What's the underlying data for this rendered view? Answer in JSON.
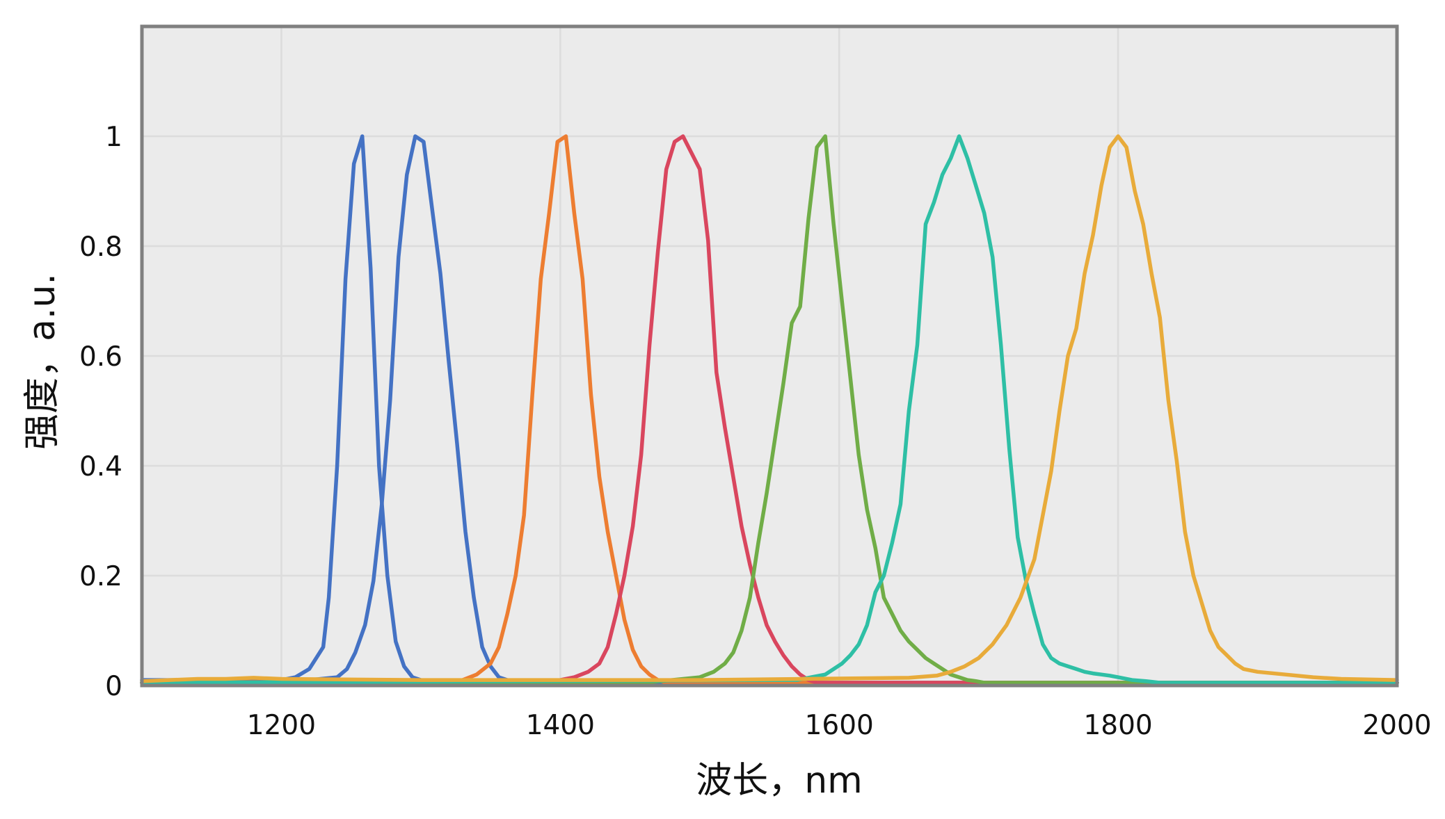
{
  "chart_data": {
    "type": "line",
    "title": "",
    "xlabel": "波长，nm",
    "ylabel": "强度，a.u.",
    "xlim": [
      1100,
      2000
    ],
    "ylim": [
      0,
      1.2
    ],
    "xticks": [
      1200,
      1400,
      1600,
      1800,
      2000
    ],
    "yticks": [
      0,
      0.2,
      0.4,
      0.6,
      0.8,
      1
    ],
    "ytick_labels": [
      "0",
      "0.2",
      "0.4",
      "0.6",
      "0.8",
      "1"
    ],
    "grid": true,
    "legend": "none",
    "background": "#ebebeb",
    "series": [
      {
        "color": "#4472c4",
        "x": [
          1100,
          1180,
          1200,
          1210,
          1220,
          1230,
          1234,
          1240,
          1246,
          1252,
          1258,
          1264,
          1270,
          1276,
          1282,
          1288,
          1294,
          1300,
          1320,
          1400,
          2000
        ],
        "y": [
          0.01,
          0.01,
          0.01,
          0.015,
          0.03,
          0.07,
          0.16,
          0.4,
          0.74,
          0.95,
          1.0,
          0.76,
          0.4,
          0.2,
          0.08,
          0.035,
          0.015,
          0.01,
          0.005,
          0.005,
          0.005
        ]
      },
      {
        "color": "#4472c4",
        "x": [
          1100,
          1200,
          1220,
          1240,
          1247,
          1253,
          1260,
          1266,
          1272,
          1278,
          1284,
          1290,
          1296,
          1302,
          1308,
          1314,
          1320,
          1326,
          1332,
          1338,
          1344,
          1350,
          1356,
          1362,
          1368,
          1374,
          1380,
          1400,
          2000
        ],
        "y": [
          0.005,
          0.005,
          0.01,
          0.015,
          0.03,
          0.06,
          0.11,
          0.19,
          0.33,
          0.52,
          0.78,
          0.93,
          1.0,
          0.99,
          0.87,
          0.75,
          0.59,
          0.44,
          0.28,
          0.16,
          0.07,
          0.035,
          0.015,
          0.01,
          0.005,
          0.005,
          0.005,
          0.005,
          0.005
        ]
      },
      {
        "color": "#ed7d31",
        "x": [
          1100,
          1330,
          1340,
          1350,
          1356,
          1362,
          1368,
          1374,
          1380,
          1386,
          1392,
          1398,
          1404,
          1410,
          1416,
          1422,
          1428,
          1434,
          1440,
          1446,
          1452,
          1458,
          1464,
          1470,
          1476,
          1500,
          2000
        ],
        "y": [
          0.005,
          0.01,
          0.02,
          0.04,
          0.07,
          0.13,
          0.2,
          0.31,
          0.53,
          0.74,
          0.86,
          0.99,
          1.0,
          0.86,
          0.74,
          0.53,
          0.38,
          0.28,
          0.2,
          0.12,
          0.065,
          0.035,
          0.02,
          0.01,
          0.005,
          0.005,
          0.005
        ]
      },
      {
        "color": "#d9465e",
        "x": [
          1100,
          1400,
          1410,
          1420,
          1428,
          1434,
          1440,
          1446,
          1452,
          1458,
          1464,
          1470,
          1476,
          1482,
          1488,
          1494,
          1500,
          1506,
          1512,
          1518,
          1524,
          1530,
          1536,
          1542,
          1548,
          1554,
          1560,
          1566,
          1572,
          1578,
          1584,
          1590,
          1600,
          1650,
          2000
        ],
        "y": [
          0.005,
          0.01,
          0.015,
          0.025,
          0.04,
          0.07,
          0.13,
          0.2,
          0.29,
          0.42,
          0.62,
          0.79,
          0.94,
          0.99,
          1.0,
          0.97,
          0.94,
          0.81,
          0.57,
          0.47,
          0.38,
          0.29,
          0.22,
          0.16,
          0.11,
          0.08,
          0.055,
          0.035,
          0.02,
          0.01,
          0.005,
          0.005,
          0.005,
          0.005,
          0.005
        ]
      },
      {
        "color": "#70ad47",
        "x": [
          1100,
          1460,
          1480,
          1500,
          1510,
          1518,
          1524,
          1530,
          1536,
          1542,
          1548,
          1554,
          1560,
          1566,
          1572,
          1578,
          1584,
          1590,
          1596,
          1602,
          1608,
          1614,
          1620,
          1626,
          1632,
          1638,
          1644,
          1650,
          1656,
          1662,
          1668,
          1674,
          1680,
          1686,
          1692,
          1698,
          1704,
          1710,
          1720,
          1730,
          1750,
          2000
        ],
        "y": [
          0.005,
          0.005,
          0.01,
          0.015,
          0.025,
          0.04,
          0.06,
          0.1,
          0.16,
          0.26,
          0.35,
          0.45,
          0.55,
          0.66,
          0.69,
          0.85,
          0.98,
          1.0,
          0.84,
          0.7,
          0.56,
          0.42,
          0.32,
          0.25,
          0.16,
          0.13,
          0.1,
          0.08,
          0.065,
          0.05,
          0.04,
          0.03,
          0.02,
          0.015,
          0.01,
          0.008,
          0.005,
          0.005,
          0.005,
          0.005,
          0.005,
          0.005
        ]
      },
      {
        "color": "#2ebfa5",
        "x": [
          1100,
          1570,
          1580,
          1590,
          1596,
          1602,
          1608,
          1614,
          1620,
          1626,
          1632,
          1638,
          1644,
          1650,
          1656,
          1662,
          1668,
          1674,
          1680,
          1686,
          1692,
          1698,
          1704,
          1710,
          1716,
          1722,
          1728,
          1734,
          1740,
          1746,
          1752,
          1758,
          1764,
          1770,
          1776,
          1782,
          1788,
          1794,
          1800,
          1810,
          1820,
          1830,
          1850,
          1900,
          2000
        ],
        "y": [
          0.005,
          0.01,
          0.015,
          0.02,
          0.03,
          0.04,
          0.055,
          0.075,
          0.11,
          0.17,
          0.2,
          0.26,
          0.33,
          0.5,
          0.62,
          0.84,
          0.88,
          0.93,
          0.96,
          1.0,
          0.96,
          0.91,
          0.86,
          0.78,
          0.62,
          0.43,
          0.27,
          0.19,
          0.13,
          0.075,
          0.05,
          0.04,
          0.035,
          0.03,
          0.025,
          0.022,
          0.02,
          0.018,
          0.015,
          0.01,
          0.008,
          0.005,
          0.005,
          0.005,
          0.005
        ]
      },
      {
        "color": "#e8ab3a",
        "x": [
          1100,
          1120,
          1140,
          1160,
          1180,
          1200,
          1300,
          1500,
          1650,
          1670,
          1680,
          1690,
          1700,
          1710,
          1720,
          1730,
          1740,
          1746,
          1752,
          1758,
          1764,
          1770,
          1776,
          1782,
          1788,
          1794,
          1800,
          1806,
          1812,
          1818,
          1824,
          1830,
          1836,
          1842,
          1848,
          1854,
          1860,
          1866,
          1872,
          1878,
          1884,
          1890,
          1900,
          1920,
          1940,
          1960,
          2000
        ],
        "y": [
          0.008,
          0.01,
          0.012,
          0.012,
          0.014,
          0.012,
          0.01,
          0.01,
          0.014,
          0.018,
          0.025,
          0.035,
          0.05,
          0.075,
          0.11,
          0.16,
          0.23,
          0.31,
          0.39,
          0.5,
          0.6,
          0.65,
          0.75,
          0.82,
          0.91,
          0.98,
          1.0,
          0.98,
          0.9,
          0.84,
          0.75,
          0.67,
          0.52,
          0.41,
          0.28,
          0.2,
          0.15,
          0.1,
          0.07,
          0.055,
          0.04,
          0.03,
          0.025,
          0.02,
          0.015,
          0.012,
          0.01
        ]
      }
    ]
  }
}
